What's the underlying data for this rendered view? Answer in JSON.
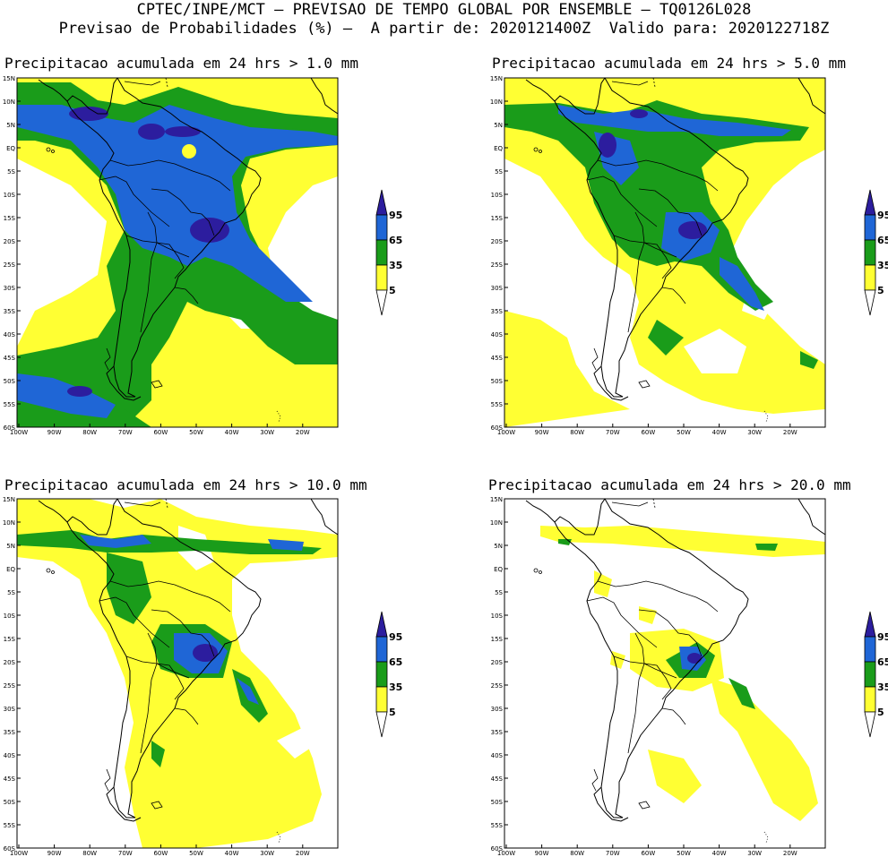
{
  "header": {
    "line1": "CPTEC/INPE/MCT – PREVISAO DE TEMPO GLOBAL POR ENSEMBLE – TQ0126L028",
    "line2": "Previsao de Probabilidades (%) –  A partir de: 2020121400Z  Valido para: 2020122718Z"
  },
  "axes": {
    "lon_labels": [
      "100W",
      "90W",
      "80W",
      "70W",
      "60W",
      "50W",
      "40W",
      "30W",
      "20W"
    ],
    "lat_labels": [
      "15N",
      "10N",
      "5N",
      "EQ",
      "5S",
      "10S",
      "15S",
      "20S",
      "25S",
      "30S",
      "35S",
      "40S",
      "45S",
      "50S",
      "55S",
      "60S"
    ]
  },
  "colorbar": {
    "labels": [
      "95",
      "65",
      "35",
      "5"
    ],
    "colors": {
      "c5": "#ffff33",
      "c35": "#1a9c1a",
      "c65": "#1f66d6",
      "c95": "#2c1d9e"
    }
  },
  "panels": [
    {
      "title": "Precipitacao acumulada em 24 hrs > 1.0 mm"
    },
    {
      "title": "Precipitacao acumulada em 24 hrs > 5.0 mm"
    },
    {
      "title": "Precipitacao acumulada em 24 hrs > 10.0 mm"
    },
    {
      "title": "Precipitacao acumulada em 24 hrs > 20.0 mm"
    }
  ]
}
